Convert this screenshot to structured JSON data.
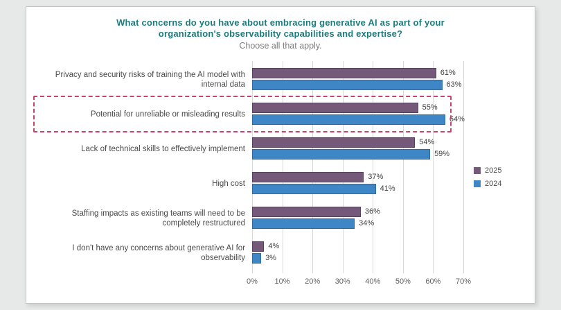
{
  "header": {
    "title_line1": "What concerns do you have about embracing generative AI as part of your",
    "title_line2": "organization's observability capabilities and expertise?",
    "subtitle": "Choose all that apply."
  },
  "chart_data": {
    "type": "bar",
    "orientation": "horizontal",
    "title": "What concerns do you have about embracing generative AI as part of your organization's observability capabilities and expertise?",
    "subtitle": "Choose all that apply.",
    "categories": [
      "Privacy and security risks of training the AI model with\ninternal data",
      "Potential for unreliable or misleading results",
      "Lack of technical skills to effectively implement",
      "High cost",
      "Staffing impacts as existing teams will need to be\ncompletely restructured",
      "I don't have any concerns about generative AI for\nobservability"
    ],
    "series": [
      {
        "name": "2025",
        "color": "#745978",
        "border_color": "#564260",
        "values": [
          61,
          55,
          54,
          37,
          36,
          4
        ]
      },
      {
        "name": "2024",
        "color": "#3e86c5",
        "border_color": "#2d6aa3",
        "values": [
          63,
          64,
          59,
          41,
          34,
          3
        ]
      }
    ],
    "xlim": [
      0,
      70
    ],
    "x_ticks": [
      "0%",
      "10%",
      "20%",
      "30%",
      "40%",
      "50%",
      "60%",
      "70%"
    ],
    "value_suffix": "%",
    "grid": "vertical",
    "legend_position": "right",
    "highlighted_category_index": 1,
    "highlight_color": "#c4436a",
    "title_color": "#1b7c7e"
  }
}
